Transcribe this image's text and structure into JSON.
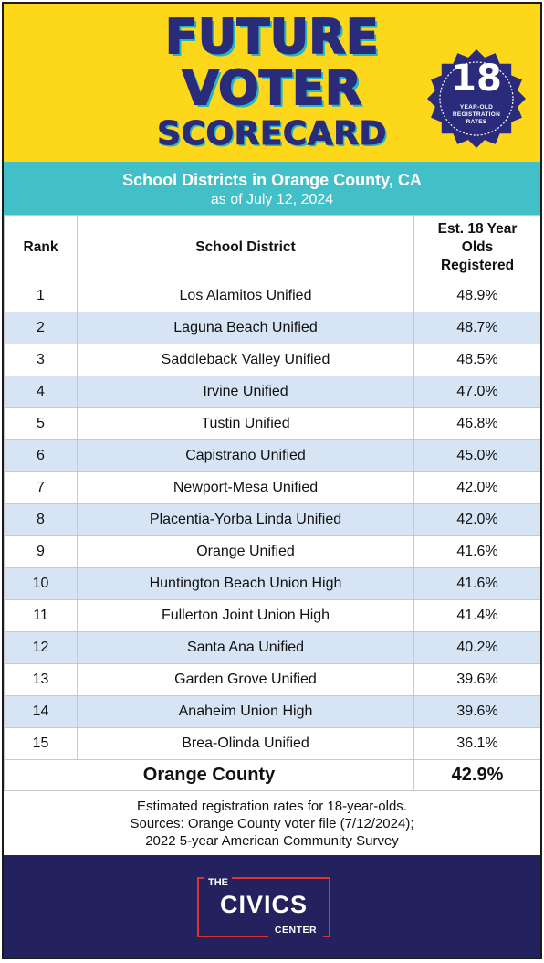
{
  "header": {
    "title_lines": [
      "FUTURE",
      "VOTER",
      "SCORECARD"
    ],
    "badge": {
      "number": "18",
      "caption": "YEAR-OLD REGISTRATION RATES"
    },
    "colors": {
      "background": "#fdd719",
      "title": "#2b2b7c",
      "shadow": "#23b7c4"
    }
  },
  "subheader": {
    "title": "School Districts in Orange County, CA",
    "date": "as of July 12, 2024",
    "color": "#43bfc8"
  },
  "table": {
    "columns": [
      "Rank",
      "School District",
      "Est. 18 Year Olds Registered"
    ],
    "rows": [
      {
        "rank": "1",
        "district": "Los Alamitos Unified",
        "rate": "48.9%"
      },
      {
        "rank": "2",
        "district": "Laguna Beach Unified",
        "rate": "48.7%"
      },
      {
        "rank": "3",
        "district": "Saddleback Valley Unified",
        "rate": "48.5%"
      },
      {
        "rank": "4",
        "district": "Irvine Unified",
        "rate": "47.0%"
      },
      {
        "rank": "5",
        "district": "Tustin Unified",
        "rate": "46.8%"
      },
      {
        "rank": "6",
        "district": "Capistrano Unified",
        "rate": "45.0%"
      },
      {
        "rank": "7",
        "district": "Newport-Mesa Unified",
        "rate": "42.0%"
      },
      {
        "rank": "8",
        "district": "Placentia-Yorba Linda Unified",
        "rate": "42.0%"
      },
      {
        "rank": "9",
        "district": "Orange Unified",
        "rate": "41.6%"
      },
      {
        "rank": "10",
        "district": "Huntington Beach Union High",
        "rate": "41.6%"
      },
      {
        "rank": "11",
        "district": "Fullerton Joint Union High",
        "rate": "41.4%"
      },
      {
        "rank": "12",
        "district": "Santa Ana Unified",
        "rate": "40.2%"
      },
      {
        "rank": "13",
        "district": "Garden Grove Unified",
        "rate": "39.6%"
      },
      {
        "rank": "14",
        "district": "Anaheim Union High",
        "rate": "39.6%"
      },
      {
        "rank": "15",
        "district": "Brea-Olinda Unified",
        "rate": "36.1%"
      }
    ],
    "total": {
      "label": "Orange County",
      "rate": "42.9%"
    },
    "alt_row_color": "#d6e4f4"
  },
  "footer": {
    "lines": [
      "Estimated registration rates for 18-year-olds.",
      "Sources: Orange County voter file (7/12/2024);",
      "2022 5-year American Community Survey"
    ]
  },
  "logo": {
    "top": "THE",
    "main": "CIVICS",
    "bottom": "CENTER",
    "colors": {
      "band": "#24215f",
      "frame": "#e03131"
    }
  }
}
